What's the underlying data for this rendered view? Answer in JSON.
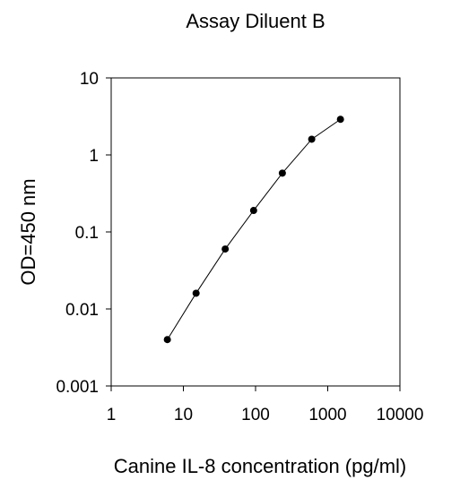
{
  "chart_data": {
    "type": "line",
    "title": "Assay Diluent B",
    "xlabel": "Canine IL-8 concentration (pg/ml)",
    "ylabel": "OD=450 nm",
    "x_scale": "log",
    "y_scale": "log",
    "xlim": [
      1,
      10000
    ],
    "ylim": [
      0.001,
      10
    ],
    "x_ticks": [
      "1",
      "10",
      "100",
      "1000",
      "10000"
    ],
    "y_ticks": [
      "0.001",
      "0.01",
      "0.1",
      "1",
      "10"
    ],
    "grid": false,
    "series": [
      {
        "x": [
          6,
          15,
          38,
          94,
          235,
          600,
          1500
        ],
        "y": [
          0.004,
          0.016,
          0.06,
          0.19,
          0.58,
          1.6,
          2.9
        ]
      }
    ],
    "colors": {
      "line": "#000000",
      "marker": "#000000"
    }
  }
}
